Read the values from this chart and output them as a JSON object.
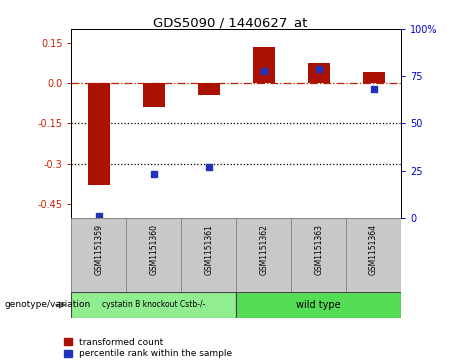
{
  "title": "GDS5090 / 1440627_at",
  "samples": [
    "GSM1151359",
    "GSM1151360",
    "GSM1151361",
    "GSM1151362",
    "GSM1151363",
    "GSM1151364"
  ],
  "red_values": [
    -0.38,
    -0.09,
    -0.045,
    0.135,
    0.075,
    0.04
  ],
  "blue_values_pct": [
    1.0,
    23.0,
    27.0,
    78.0,
    79.0,
    68.0
  ],
  "ylim_left": [
    -0.5,
    0.2
  ],
  "ylim_right": [
    0,
    100
  ],
  "yticks_left": [
    0.15,
    0.0,
    -0.15,
    -0.3,
    -0.45
  ],
  "yticks_right": [
    100,
    75,
    50,
    25,
    0
  ],
  "group1_label": "cystatin B knockout Cstb-/-",
  "group2_label": "wild type",
  "group1_color": "#90EE90",
  "group2_color": "#55DD55",
  "group1_indices": [
    0,
    1,
    2
  ],
  "group2_indices": [
    3,
    4,
    5
  ],
  "genotype_label": "genotype/variation",
  "legend_red": "transformed count",
  "legend_blue": "percentile rank within the sample",
  "bar_width": 0.4,
  "red_color": "#AA1100",
  "blue_color": "#2233BB",
  "bg_color": "#FFFFFF",
  "plot_bg": "#FFFFFF",
  "hline_color": "#BB2200",
  "dotted_color": "#000000",
  "tick_label_color_left": "#CC2200",
  "tick_label_color_right": "#0000CC",
  "sample_box_color": "#C8C8C8",
  "sample_box_edge": "#888888"
}
